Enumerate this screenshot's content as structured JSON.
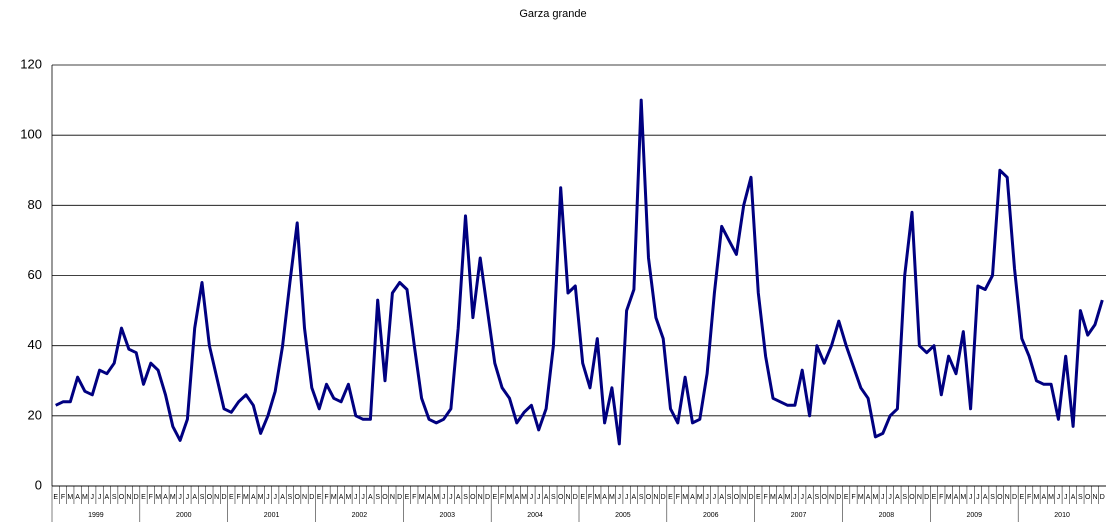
{
  "chart_data": {
    "type": "line",
    "title": "Garza grande",
    "categories": [
      "E",
      "F",
      "M",
      "A",
      "M",
      "J",
      "J",
      "A",
      "S",
      "O",
      "N",
      "D",
      "E",
      "F",
      "M",
      "A",
      "M",
      "J",
      "J",
      "A",
      "S",
      "O",
      "N",
      "D",
      "E",
      "F",
      "M",
      "A",
      "M",
      "J",
      "J",
      "A",
      "S",
      "O",
      "N",
      "D",
      "E",
      "F",
      "M",
      "A",
      "M",
      "J",
      "J",
      "A",
      "S",
      "O",
      "N",
      "D",
      "E",
      "F",
      "M",
      "A",
      "M",
      "J",
      "J",
      "A",
      "S",
      "O",
      "N",
      "D",
      "E",
      "F",
      "M",
      "A",
      "M",
      "J",
      "J",
      "A",
      "S",
      "O",
      "N",
      "D",
      "E",
      "F",
      "M",
      "A",
      "M",
      "J",
      "J",
      "A",
      "S",
      "O",
      "N",
      "D",
      "E",
      "F",
      "M",
      "A",
      "M",
      "J",
      "J",
      "A",
      "S",
      "O",
      "N",
      "D",
      "E",
      "F",
      "M",
      "A",
      "M",
      "J",
      "J",
      "A",
      "S",
      "O",
      "N",
      "D",
      "E",
      "F",
      "M",
      "A",
      "M",
      "J",
      "J",
      "A",
      "S",
      "O",
      "N",
      "D",
      "E",
      "F",
      "M",
      "A",
      "M",
      "J",
      "J",
      "A",
      "S",
      "O",
      "N",
      "D",
      "E",
      "F",
      "M",
      "A",
      "M",
      "J",
      "J",
      "A",
      "S",
      "O",
      "N",
      "D"
    ],
    "years": [
      "1999",
      "2000",
      "2001",
      "2002",
      "2003",
      "2004",
      "2005",
      "2006",
      "2007",
      "2008",
      "2009",
      "2010"
    ],
    "series": [
      {
        "name": "Garza grande",
        "color": "#000080",
        "values": [
          23,
          24,
          24,
          31,
          27,
          26,
          33,
          32,
          35,
          45,
          39,
          38,
          29,
          35,
          33,
          26,
          17,
          13,
          19,
          45,
          58,
          40,
          31,
          22,
          21,
          24,
          26,
          23,
          15,
          20,
          27,
          40,
          58,
          75,
          45,
          28,
          22,
          29,
          25,
          24,
          29,
          20,
          19,
          19,
          53,
          30,
          55,
          58,
          56,
          40,
          25,
          19,
          18,
          19,
          22,
          45,
          77,
          48,
          65,
          50,
          35,
          28,
          25,
          18,
          21,
          23,
          16,
          22,
          40,
          85,
          55,
          57,
          35,
          28,
          42,
          18,
          28,
          12,
          50,
          56,
          110,
          65,
          48,
          42,
          22,
          18,
          31,
          18,
          19,
          32,
          55,
          74,
          70,
          66,
          80,
          88,
          55,
          37,
          25,
          24,
          23,
          23,
          33,
          20,
          40,
          35,
          40,
          47,
          40,
          34,
          28,
          25,
          14,
          15,
          20,
          22,
          60,
          78,
          40,
          38,
          40,
          26,
          37,
          32,
          44,
          22,
          57,
          56,
          60,
          90,
          88,
          62,
          42,
          37,
          30,
          29,
          29,
          19,
          37,
          17,
          50,
          43,
          46,
          53
        ]
      }
    ],
    "ylim": [
      0,
      120
    ],
    "yticks": [
      0,
      20,
      40,
      60,
      80,
      100,
      120
    ],
    "grid": true
  }
}
